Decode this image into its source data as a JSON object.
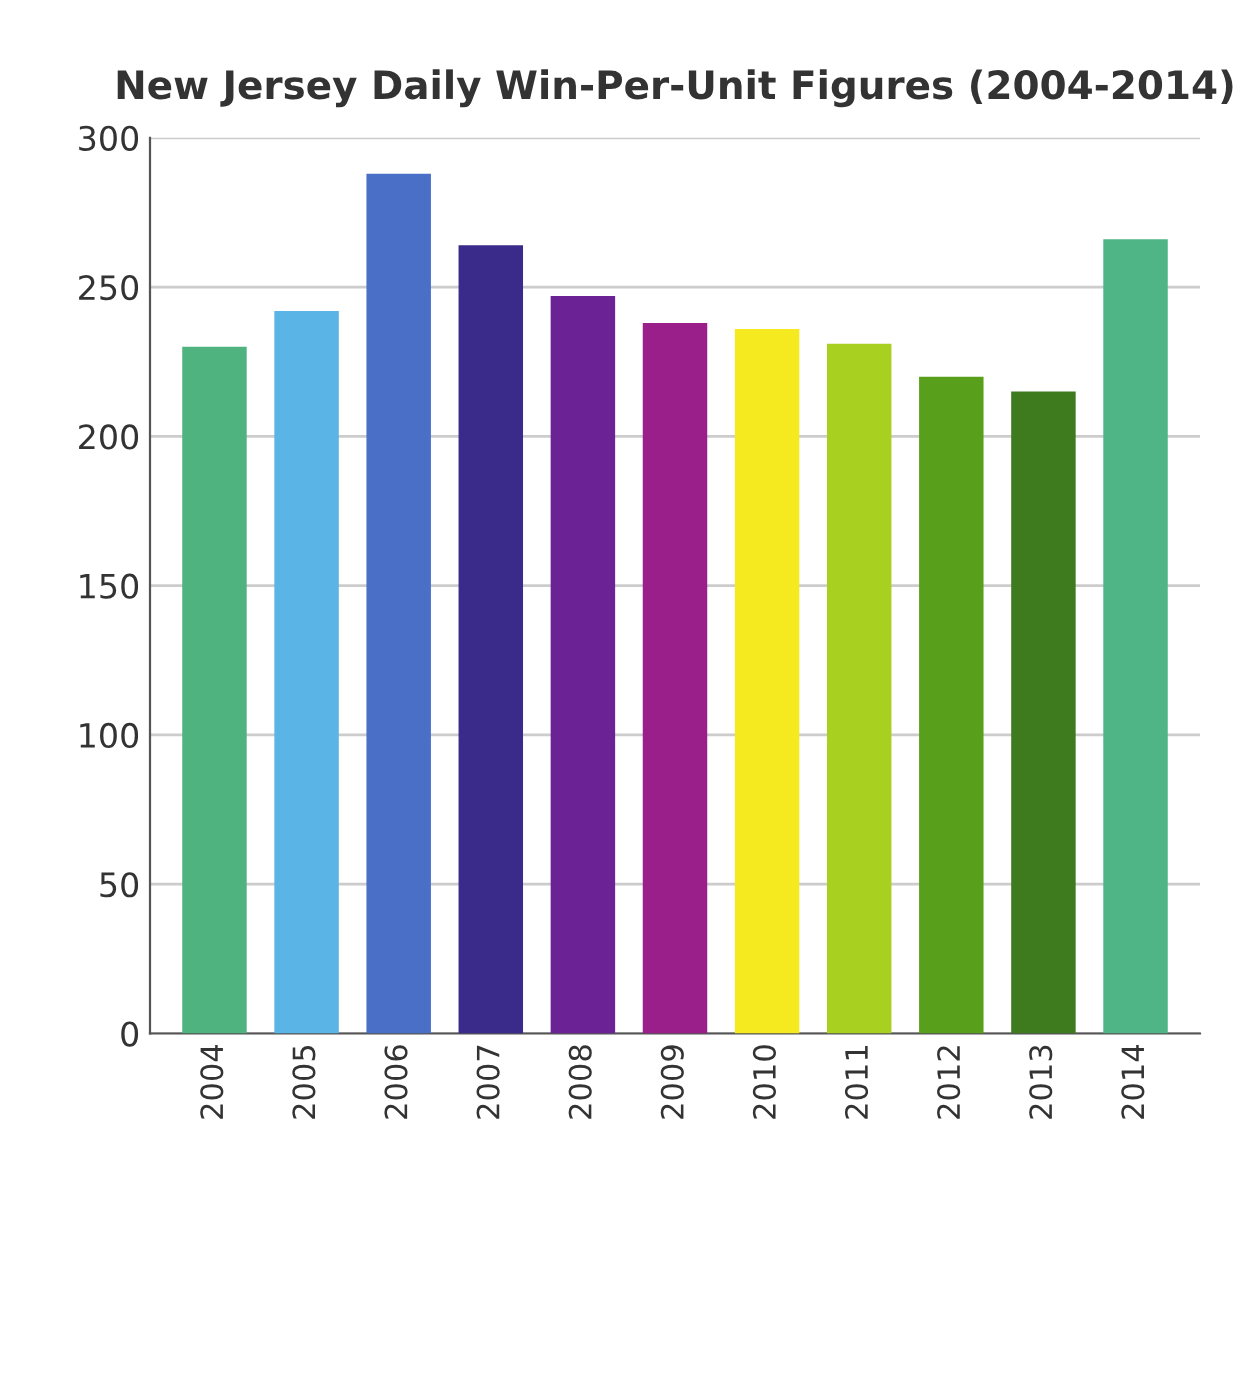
{
  "chart_data": {
    "type": "bar",
    "title": "New Jersey Daily Win-Per-Unit Figures (2004-2014)",
    "categories": [
      "2004",
      "2005",
      "2006",
      "2007",
      "2008",
      "2009",
      "2010",
      "2011",
      "2012",
      "2013",
      "2014"
    ],
    "values": [
      230,
      242,
      288,
      264,
      247,
      238,
      236,
      231,
      220,
      215,
      266
    ],
    "colors": [
      "#4fb37f",
      "#5ab4e6",
      "#4a6fc6",
      "#3a2a8a",
      "#6a2294",
      "#9a1f8a",
      "#f5ea20",
      "#a8d020",
      "#58a01c",
      "#3e7a1e",
      "#4fb587"
    ],
    "ylim": [
      0,
      300
    ],
    "yticks": [
      0,
      50,
      100,
      150,
      200,
      250,
      300
    ],
    "grid": "y"
  }
}
